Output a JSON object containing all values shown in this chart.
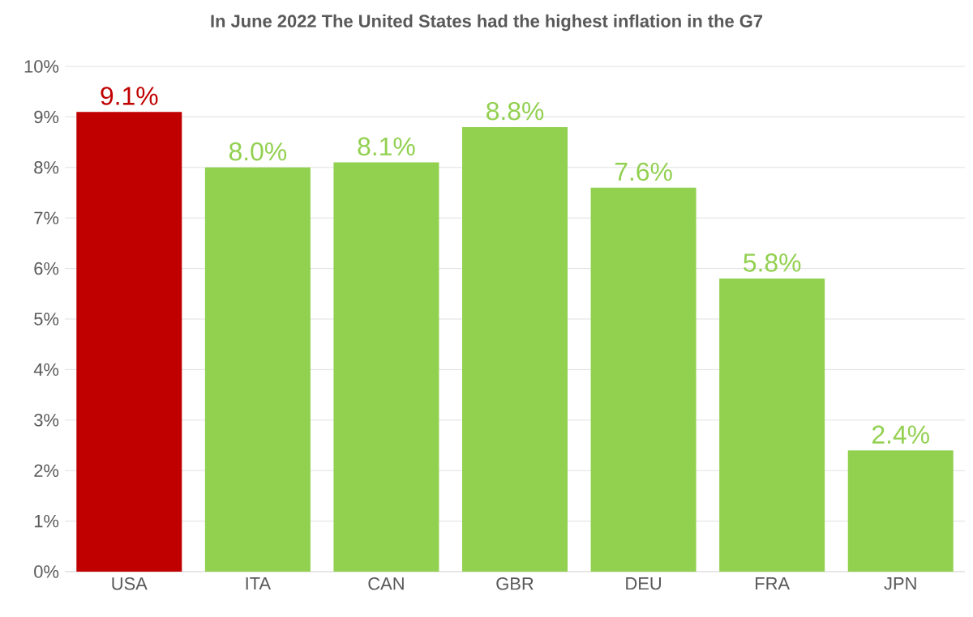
{
  "chart_data": {
    "type": "bar",
    "title": "In June 2022 The United States had the highest inflation in the G7",
    "categories": [
      "USA",
      "ITA",
      "CAN",
      "GBR",
      "DEU",
      "FRA",
      "JPN"
    ],
    "values": [
      9.1,
      8.0,
      8.1,
      8.8,
      7.6,
      5.8,
      2.4
    ],
    "colors": [
      "#c00000",
      "#92d050",
      "#92d050",
      "#92d050",
      "#92d050",
      "#92d050",
      "#92d050"
    ],
    "value_labels": [
      "9.1%",
      "8.0%",
      "8.1%",
      "8.8%",
      "7.6%",
      "5.8%",
      "2.4%"
    ],
    "ylim": [
      0,
      10
    ],
    "yticks": [
      {
        "value": 0,
        "label": "0%"
      },
      {
        "value": 1,
        "label": "1%"
      },
      {
        "value": 2,
        "label": "2%"
      },
      {
        "value": 3,
        "label": "3%"
      },
      {
        "value": 4,
        "label": "4%"
      },
      {
        "value": 5,
        "label": "5%"
      },
      {
        "value": 6,
        "label": "6%"
      },
      {
        "value": 7,
        "label": "7%"
      },
      {
        "value": 8,
        "label": "8%"
      },
      {
        "value": 9,
        "label": "9%"
      },
      {
        "value": 10,
        "label": "10%"
      }
    ],
    "grid": "y"
  }
}
